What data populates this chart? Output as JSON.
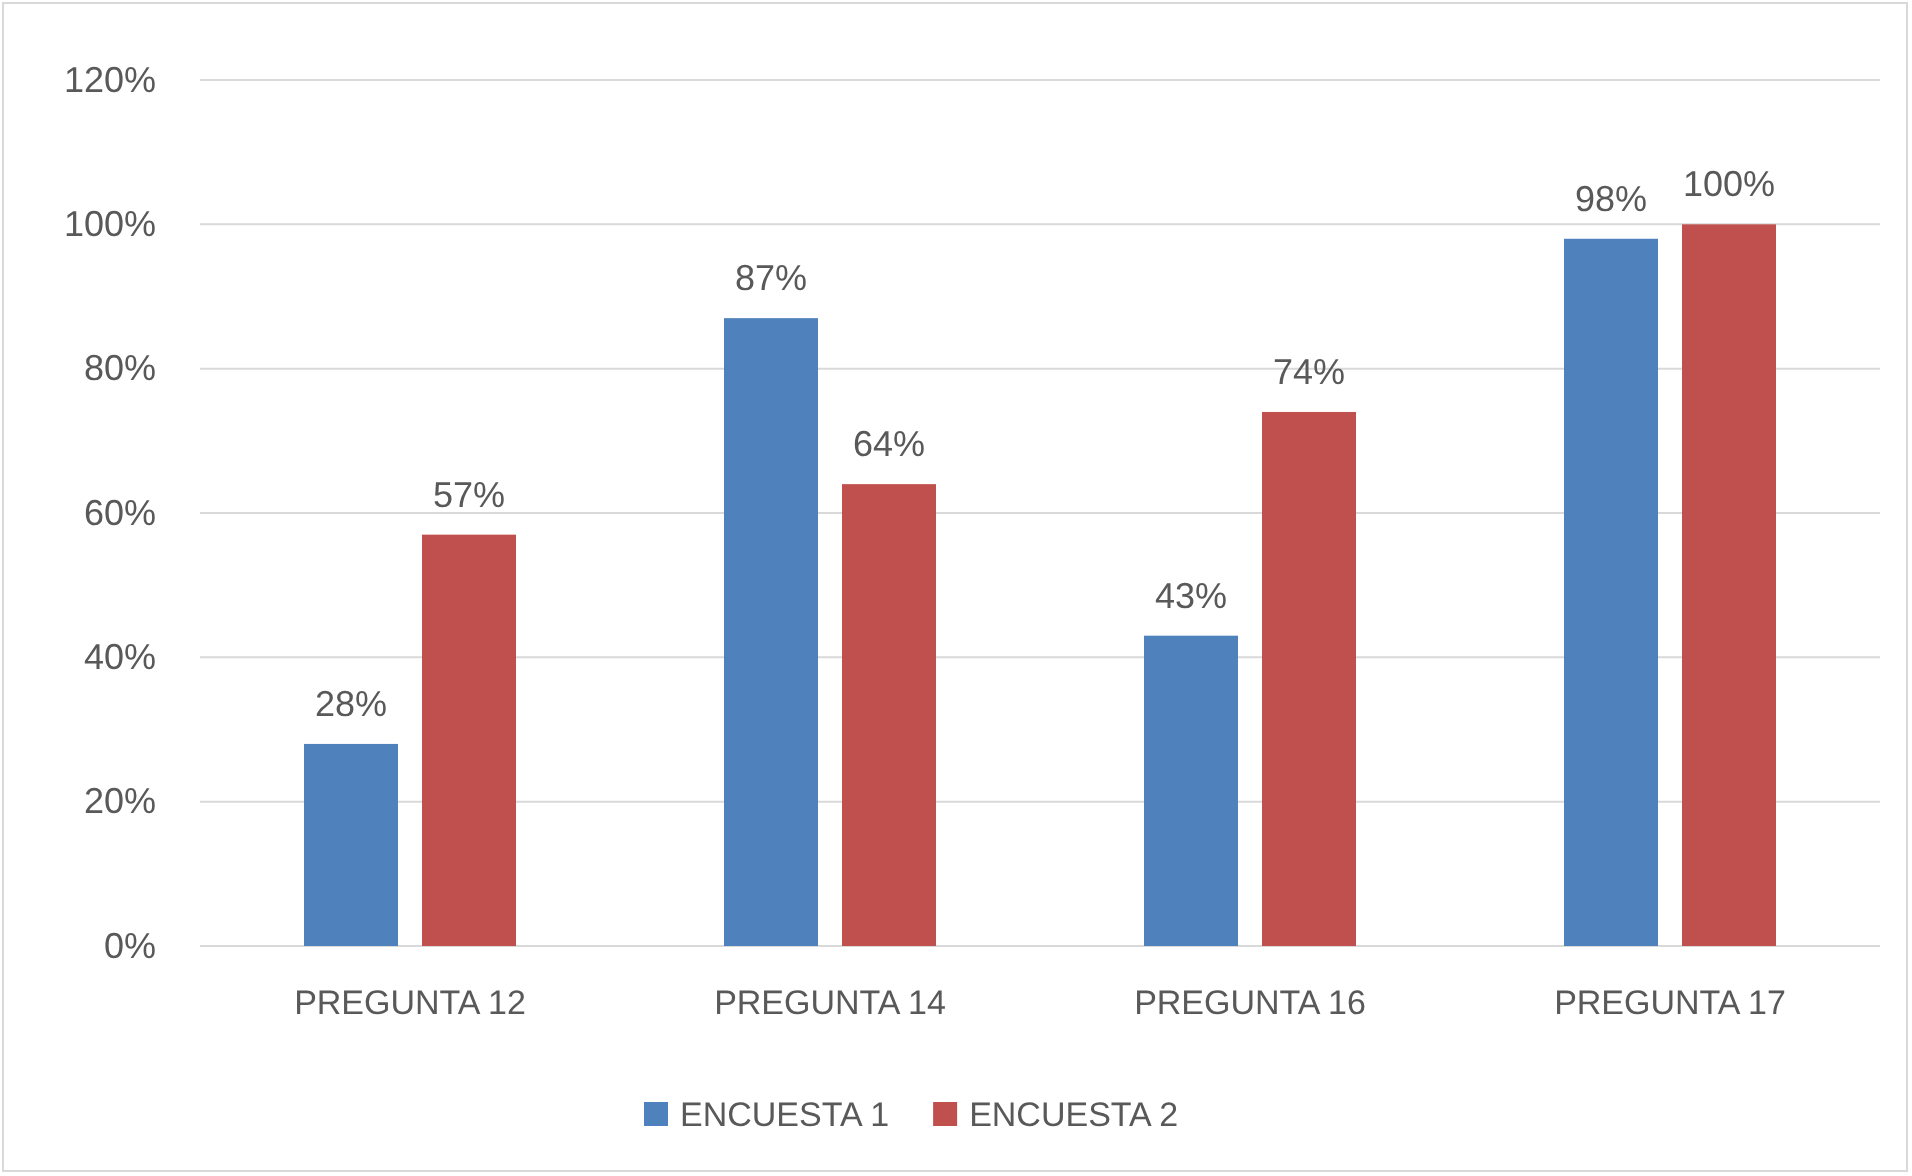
{
  "chart_data": {
    "type": "bar",
    "categories": [
      "PREGUNTA 12",
      "PREGUNTA 14",
      "PREGUNTA 16",
      "PREGUNTA 17"
    ],
    "series": [
      {
        "name": "ENCUESTA 1",
        "color": "#4f81bd",
        "values": [
          28,
          87,
          43,
          98
        ],
        "value_labels": [
          "28%",
          "87%",
          "43%",
          "98%"
        ]
      },
      {
        "name": "ENCUESTA 2",
        "color": "#c0504d",
        "values": [
          57,
          64,
          74,
          100
        ],
        "value_labels": [
          "57%",
          "64%",
          "74%",
          "100%"
        ]
      }
    ],
    "ylim": [
      0,
      120
    ],
    "yticks": [
      {
        "value": 0,
        "label": "0%"
      },
      {
        "value": 20,
        "label": "20%"
      },
      {
        "value": 40,
        "label": "40%"
      },
      {
        "value": 60,
        "label": "60%"
      },
      {
        "value": 80,
        "label": "80%"
      },
      {
        "value": 100,
        "label": "100%"
      },
      {
        "value": 120,
        "label": "120%"
      }
    ],
    "grid": "y",
    "legend": "bottom"
  }
}
